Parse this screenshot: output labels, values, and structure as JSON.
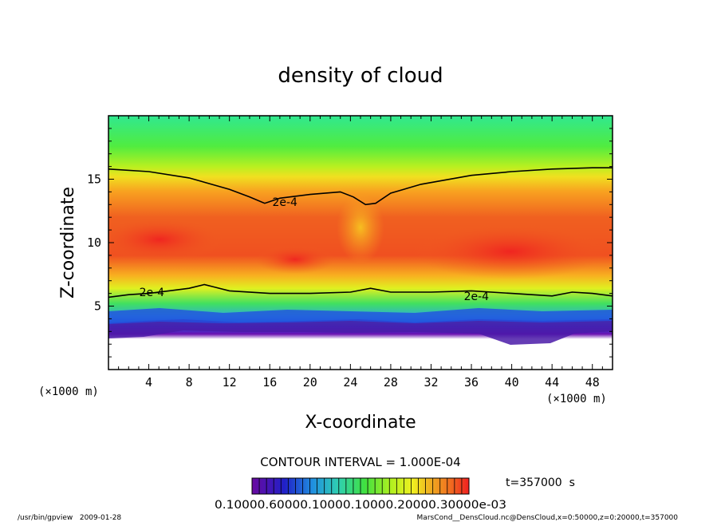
{
  "chart_data": {
    "type": "heatmap",
    "title": "density of cloud",
    "xlabel": "X-coordinate",
    "ylabel": "Z-coordinate",
    "x_unit": "(×1000 m)",
    "z_unit": "(×1000 m)",
    "xlim": [
      0,
      50
    ],
    "ylim": [
      0,
      20
    ],
    "x_ticks": [
      "4",
      "8",
      "12",
      "16",
      "20",
      "24",
      "28",
      "32",
      "36",
      "40",
      "44",
      "48"
    ],
    "y_ticks": [
      "5",
      "10",
      "15"
    ],
    "contours": [
      {
        "label": "2e-4",
        "name": "upper",
        "x": [
          0,
          4,
          8,
          12,
          14,
          15.5,
          17,
          20,
          23,
          24.3,
          25.5,
          26.5,
          28,
          31,
          36,
          40,
          44,
          48,
          50
        ],
        "z": [
          15.8,
          15.6,
          15.1,
          14.2,
          13.6,
          13.1,
          13.5,
          13.8,
          14.0,
          13.6,
          13.0,
          13.1,
          13.9,
          14.6,
          15.3,
          15.6,
          15.8,
          15.9,
          15.9
        ]
      },
      {
        "label": "2e-4",
        "name": "lower",
        "x": [
          0,
          2,
          4,
          6,
          8,
          9.5,
          10.5,
          12,
          16,
          20,
          24,
          26,
          28,
          32,
          36,
          40,
          44,
          46,
          48,
          50
        ],
        "z": [
          5.7,
          5.9,
          6.0,
          6.2,
          6.4,
          6.7,
          6.5,
          6.2,
          6.0,
          6.0,
          6.1,
          6.4,
          6.1,
          6.1,
          6.2,
          6.0,
          5.8,
          6.1,
          6.0,
          5.8
        ]
      }
    ],
    "contour_labels": [
      {
        "text": "2e-4",
        "x": 17.5,
        "z": 13.2
      },
      {
        "text": "2e-4",
        "x": 4.3,
        "z": 6.1
      },
      {
        "text": "2e-4",
        "x": 36.5,
        "z": 5.8
      }
    ],
    "contour_interval_text": "CONTOUR INTERVAL = 1.000E-04",
    "colorbar_labels": "0.10000.60000.10000.10000.20000.30000e-03",
    "time_text": "t=357000  s",
    "colormap": [
      "#6a0aa0",
      "#2020c8",
      "#2090e0",
      "#30d0b0",
      "#40e040",
      "#b0f020",
      "#f0f020",
      "#f0b020",
      "#f07020",
      "#f02020"
    ]
  },
  "footer": {
    "left": "/usr/bin/gpview   2009-01-28",
    "right": "MarsCond__DensCloud.nc@DensCloud,x=0:50000,z=0:20000,t=357000"
  }
}
